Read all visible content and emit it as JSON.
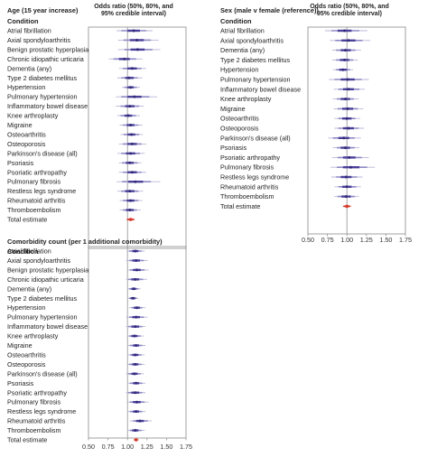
{
  "colors": {
    "panel_border": "#8a8a8a",
    "reference_line": "#9a9a9a",
    "interval_95": "#b9b6d8",
    "interval_80": "#8e89c4",
    "interval_50": "#4a3f98",
    "point": "#2f2a7a",
    "total_estimate": "#d9382b"
  },
  "chart_data": [
    {
      "type": "forest",
      "title": "Age (15 year increase)",
      "condition_header": "Condition",
      "effect_header": "Odds ratio (50%, 80%, and 95% credible interval)",
      "xlim": [
        0.5,
        1.75
      ],
      "reference": 1.0,
      "tick_values": [
        0.5,
        0.75,
        1.0,
        1.25,
        1.5,
        1.75
      ],
      "tick_labels": [],
      "rows": [
        {
          "label": "Atrial fibrillation",
          "est": 1.08,
          "ci50": [
            1.0,
            1.16
          ],
          "ci80": [
            0.92,
            1.24
          ],
          "ci95": [
            0.86,
            1.32
          ]
        },
        {
          "label": "Axial spondyloarthritis",
          "est": 1.12,
          "ci50": [
            1.03,
            1.21
          ],
          "ci80": [
            0.95,
            1.3
          ],
          "ci95": [
            0.88,
            1.4
          ]
        },
        {
          "label": "Benign prostatic hyperplasia",
          "est": 1.13,
          "ci50": [
            1.04,
            1.22
          ],
          "ci80": [
            0.96,
            1.32
          ],
          "ci95": [
            0.88,
            1.42
          ]
        },
        {
          "label": "Chronic idiopathic urticaria",
          "est": 0.96,
          "ci50": [
            0.89,
            1.03
          ],
          "ci80": [
            0.82,
            1.11
          ],
          "ci95": [
            0.76,
            1.19
          ]
        },
        {
          "label": "Dementia (any)",
          "est": 1.06,
          "ci50": [
            1.0,
            1.12
          ],
          "ci80": [
            0.94,
            1.18
          ],
          "ci95": [
            0.89,
            1.24
          ]
        },
        {
          "label": "Type 2 diabetes mellitus",
          "est": 1.02,
          "ci50": [
            0.97,
            1.08
          ],
          "ci80": [
            0.92,
            1.13
          ],
          "ci95": [
            0.87,
            1.19
          ]
        },
        {
          "label": "Hypertension",
          "est": 1.04,
          "ci50": [
            1.0,
            1.08
          ],
          "ci80": [
            0.96,
            1.12
          ],
          "ci95": [
            0.93,
            1.16
          ]
        },
        {
          "label": "Pulmonary hypertension",
          "est": 1.09,
          "ci50": [
            1.0,
            1.18
          ],
          "ci80": [
            0.92,
            1.28
          ],
          "ci95": [
            0.85,
            1.38
          ]
        },
        {
          "label": "Inflammatory bowel disease",
          "est": 1.03,
          "ci50": [
            0.97,
            1.09
          ],
          "ci80": [
            0.91,
            1.15
          ],
          "ci95": [
            0.85,
            1.21
          ]
        },
        {
          "label": "Knee arthroplasty",
          "est": 1.01,
          "ci50": [
            0.96,
            1.06
          ],
          "ci80": [
            0.91,
            1.11
          ],
          "ci95": [
            0.87,
            1.16
          ]
        },
        {
          "label": "Migraine",
          "est": 1.04,
          "ci50": [
            0.99,
            1.09
          ],
          "ci80": [
            0.94,
            1.14
          ],
          "ci95": [
            0.9,
            1.19
          ]
        },
        {
          "label": "Osteoarthritis",
          "est": 1.05,
          "ci50": [
            1.0,
            1.1
          ],
          "ci80": [
            0.95,
            1.15
          ],
          "ci95": [
            0.91,
            1.2
          ]
        },
        {
          "label": "Osteoporosis",
          "est": 1.06,
          "ci50": [
            1.0,
            1.12
          ],
          "ci80": [
            0.94,
            1.18
          ],
          "ci95": [
            0.89,
            1.24
          ]
        },
        {
          "label": "Parkinson's disease (all)",
          "est": 1.04,
          "ci50": [
            0.98,
            1.1
          ],
          "ci80": [
            0.92,
            1.16
          ],
          "ci95": [
            0.87,
            1.22
          ]
        },
        {
          "label": "Psoriasis",
          "est": 1.03,
          "ci50": [
            0.98,
            1.08
          ],
          "ci80": [
            0.93,
            1.13
          ],
          "ci95": [
            0.89,
            1.18
          ]
        },
        {
          "label": "Psoriatic arthropathy",
          "est": 1.06,
          "ci50": [
            1.0,
            1.12
          ],
          "ci80": [
            0.94,
            1.18
          ],
          "ci95": [
            0.89,
            1.24
          ]
        },
        {
          "label": "Pulmonary fibrosis",
          "est": 1.1,
          "ci50": [
            1.01,
            1.2
          ],
          "ci80": [
            0.93,
            1.3
          ],
          "ci95": [
            0.86,
            1.42
          ]
        },
        {
          "label": "Restless legs syndrome",
          "est": 1.03,
          "ci50": [
            0.97,
            1.09
          ],
          "ci80": [
            0.92,
            1.14
          ],
          "ci95": [
            0.87,
            1.2
          ]
        },
        {
          "label": "Rheumatoid arthritis",
          "est": 1.04,
          "ci50": [
            0.99,
            1.09
          ],
          "ci80": [
            0.94,
            1.14
          ],
          "ci95": [
            0.9,
            1.19
          ]
        },
        {
          "label": "Thromboembolism",
          "est": 1.03,
          "ci50": [
            0.98,
            1.08
          ],
          "ci80": [
            0.94,
            1.12
          ],
          "ci95": [
            0.9,
            1.17
          ]
        },
        {
          "label": "Total estimate",
          "est": 1.04,
          "ci50": [
            1.02,
            1.06
          ],
          "ci80": [
            1.0,
            1.08
          ],
          "ci95": [
            0.99,
            1.09
          ],
          "total": true
        }
      ]
    },
    {
      "type": "forest",
      "title": "Sex (male v female (reference))",
      "condition_header": "Condition",
      "effect_header": "Odds ratio (50%, 80%, and 95% credible interval)",
      "xlim": [
        0.5,
        1.75
      ],
      "reference": 1.0,
      "tick_values": [
        0.5,
        0.75,
        1.0,
        1.25,
        1.5,
        1.75
      ],
      "tick_labels": [
        "0.50",
        "0.75",
        "1.00",
        "1.25",
        "1.50",
        "1.75"
      ],
      "rows": [
        {
          "label": "Atrial fibrillation",
          "est": 0.97,
          "ci50": [
            0.88,
            1.06
          ],
          "ci80": [
            0.8,
            1.16
          ],
          "ci95": [
            0.72,
            1.26
          ]
        },
        {
          "label": "Axial spondyloarthritis",
          "est": 1.02,
          "ci50": [
            0.93,
            1.11
          ],
          "ci80": [
            0.85,
            1.2
          ],
          "ci95": [
            0.78,
            1.3
          ]
        },
        {
          "label": "Dementia (any)",
          "est": 0.98,
          "ci50": [
            0.92,
            1.05
          ],
          "ci80": [
            0.86,
            1.11
          ],
          "ci95": [
            0.81,
            1.18
          ]
        },
        {
          "label": "Type 2 diabetes mellitus",
          "est": 0.97,
          "ci50": [
            0.91,
            1.03
          ],
          "ci80": [
            0.86,
            1.08
          ],
          "ci95": [
            0.81,
            1.14
          ]
        },
        {
          "label": "Hypertension",
          "est": 0.95,
          "ci50": [
            0.9,
            1.0
          ],
          "ci80": [
            0.86,
            1.04
          ],
          "ci95": [
            0.82,
            1.08
          ]
        },
        {
          "label": "Pulmonary hypertension",
          "est": 1.01,
          "ci50": [
            0.92,
            1.1
          ],
          "ci80": [
            0.84,
            1.19
          ],
          "ci95": [
            0.77,
            1.28
          ]
        },
        {
          "label": "Inflammatory bowel disease",
          "est": 1.02,
          "ci50": [
            0.95,
            1.09
          ],
          "ci80": [
            0.89,
            1.16
          ],
          "ci95": [
            0.83,
            1.23
          ]
        },
        {
          "label": "Knee arthroplasty",
          "est": 0.98,
          "ci50": [
            0.92,
            1.04
          ],
          "ci80": [
            0.87,
            1.09
          ],
          "ci95": [
            0.82,
            1.15
          ]
        },
        {
          "label": "Migraine",
          "est": 1.01,
          "ci50": [
            0.94,
            1.08
          ],
          "ci80": [
            0.88,
            1.14
          ],
          "ci95": [
            0.83,
            1.21
          ]
        },
        {
          "label": "Osteoarthritis",
          "est": 1.0,
          "ci50": [
            0.94,
            1.06
          ],
          "ci80": [
            0.89,
            1.11
          ],
          "ci95": [
            0.84,
            1.17
          ]
        },
        {
          "label": "Osteoporosis",
          "est": 1.02,
          "ci50": [
            0.95,
            1.09
          ],
          "ci80": [
            0.89,
            1.15
          ],
          "ci95": [
            0.84,
            1.22
          ]
        },
        {
          "label": "Parkinson's disease (all)",
          "est": 0.96,
          "ci50": [
            0.89,
            1.03
          ],
          "ci80": [
            0.82,
            1.1
          ],
          "ci95": [
            0.76,
            1.18
          ]
        },
        {
          "label": "Psoriasis",
          "est": 0.98,
          "ci50": [
            0.92,
            1.04
          ],
          "ci80": [
            0.87,
            1.1
          ],
          "ci95": [
            0.82,
            1.16
          ]
        },
        {
          "label": "Psoriatic arthropathy",
          "est": 1.03,
          "ci50": [
            0.95,
            1.11
          ],
          "ci80": [
            0.88,
            1.19
          ],
          "ci95": [
            0.81,
            1.28
          ]
        },
        {
          "label": "Pulmonary fibrosis",
          "est": 1.05,
          "ci50": [
            0.95,
            1.16
          ],
          "ci80": [
            0.87,
            1.26
          ],
          "ci95": [
            0.79,
            1.36
          ]
        },
        {
          "label": "Restless legs syndrome",
          "est": 0.99,
          "ci50": [
            0.92,
            1.06
          ],
          "ci80": [
            0.86,
            1.13
          ],
          "ci95": [
            0.8,
            1.2
          ]
        },
        {
          "label": "Rheumatoid arthritis",
          "est": 1.0,
          "ci50": [
            0.94,
            1.06
          ],
          "ci80": [
            0.89,
            1.12
          ],
          "ci95": [
            0.84,
            1.18
          ]
        },
        {
          "label": "Thromboembolism",
          "est": 0.99,
          "ci50": [
            0.93,
            1.05
          ],
          "ci80": [
            0.88,
            1.1
          ],
          "ci95": [
            0.84,
            1.15
          ]
        },
        {
          "label": "Total estimate",
          "est": 1.0,
          "ci50": [
            0.98,
            1.02
          ],
          "ci80": [
            0.96,
            1.04
          ],
          "ci95": [
            0.95,
            1.05
          ],
          "total": true
        }
      ]
    },
    {
      "type": "forest",
      "title": "Comorbidity count (per 1 additional comorbidity)",
      "condition_header": "Condition",
      "effect_header": "",
      "xlim": [
        0.5,
        1.75
      ],
      "reference": 1.0,
      "tick_values": [
        0.5,
        0.75,
        1.0,
        1.25,
        1.5,
        1.75
      ],
      "tick_labels": [
        "0.50",
        "0.75",
        "1.00",
        "1.25",
        "1.50",
        "1.75"
      ],
      "rows": [
        {
          "label": "Atrial fibrillation",
          "est": 1.1,
          "ci50": [
            1.06,
            1.14
          ],
          "ci80": [
            1.02,
            1.18
          ],
          "ci95": [
            0.99,
            1.22
          ]
        },
        {
          "label": "Axial spondyloarthritis",
          "est": 1.11,
          "ci50": [
            1.06,
            1.16
          ],
          "ci80": [
            1.02,
            1.21
          ],
          "ci95": [
            0.98,
            1.26
          ]
        },
        {
          "label": "Benign prostatic hyperplasia",
          "est": 1.12,
          "ci50": [
            1.07,
            1.17
          ],
          "ci80": [
            1.03,
            1.22
          ],
          "ci95": [
            0.99,
            1.27
          ]
        },
        {
          "label": "Chronic idiopathic urticaria",
          "est": 1.1,
          "ci50": [
            1.05,
            1.15
          ],
          "ci80": [
            1.01,
            1.2
          ],
          "ci95": [
            0.98,
            1.25
          ]
        },
        {
          "label": "Dementia (any)",
          "est": 1.08,
          "ci50": [
            1.05,
            1.11
          ],
          "ci80": [
            1.02,
            1.14
          ],
          "ci95": [
            1.0,
            1.17
          ]
        },
        {
          "label": "Type 2 diabetes mellitus",
          "est": 1.07,
          "ci50": [
            1.04,
            1.1
          ],
          "ci80": [
            1.02,
            1.12
          ],
          "ci95": [
            1.0,
            1.14
          ]
        },
        {
          "label": "Hypertension",
          "est": 1.12,
          "ci50": [
            1.08,
            1.16
          ],
          "ci80": [
            1.05,
            1.19
          ],
          "ci95": [
            1.02,
            1.23
          ]
        },
        {
          "label": "Pulmonary hypertension",
          "est": 1.11,
          "ci50": [
            1.06,
            1.16
          ],
          "ci80": [
            1.02,
            1.21
          ],
          "ci95": [
            0.98,
            1.26
          ]
        },
        {
          "label": "Inflammatory bowel disease",
          "est": 1.1,
          "ci50": [
            1.05,
            1.15
          ],
          "ci80": [
            1.01,
            1.19
          ],
          "ci95": [
            0.98,
            1.23
          ]
        },
        {
          "label": "Knee arthroplasty",
          "est": 1.09,
          "ci50": [
            1.05,
            1.13
          ],
          "ci80": [
            1.02,
            1.17
          ],
          "ci95": [
            0.99,
            1.21
          ]
        },
        {
          "label": "Migraine",
          "est": 1.11,
          "ci50": [
            1.07,
            1.15
          ],
          "ci80": [
            1.03,
            1.19
          ],
          "ci95": [
            1.0,
            1.23
          ]
        },
        {
          "label": "Osteoarthritis",
          "est": 1.1,
          "ci50": [
            1.06,
            1.14
          ],
          "ci80": [
            1.03,
            1.18
          ],
          "ci95": [
            1.0,
            1.22
          ]
        },
        {
          "label": "Osteoporosis",
          "est": 1.1,
          "ci50": [
            1.06,
            1.14
          ],
          "ci80": [
            1.02,
            1.18
          ],
          "ci95": [
            0.99,
            1.22
          ]
        },
        {
          "label": "Parkinson's disease (all)",
          "est": 1.09,
          "ci50": [
            1.05,
            1.13
          ],
          "ci80": [
            1.01,
            1.17
          ],
          "ci95": [
            0.98,
            1.21
          ]
        },
        {
          "label": "Psoriasis",
          "est": 1.11,
          "ci50": [
            1.07,
            1.15
          ],
          "ci80": [
            1.03,
            1.19
          ],
          "ci95": [
            1.0,
            1.23
          ]
        },
        {
          "label": "Psoriatic arthropathy",
          "est": 1.1,
          "ci50": [
            1.05,
            1.15
          ],
          "ci80": [
            1.01,
            1.19
          ],
          "ci95": [
            0.98,
            1.23
          ]
        },
        {
          "label": "Pulmonary fibrosis",
          "est": 1.12,
          "ci50": [
            1.07,
            1.17
          ],
          "ci80": [
            1.03,
            1.22
          ],
          "ci95": [
            0.99,
            1.27
          ]
        },
        {
          "label": "Restless legs syndrome",
          "est": 1.11,
          "ci50": [
            1.07,
            1.15
          ],
          "ci80": [
            1.03,
            1.19
          ],
          "ci95": [
            1.0,
            1.23
          ]
        },
        {
          "label": "Rheumatoid arthritis",
          "est": 1.16,
          "ci50": [
            1.11,
            1.21
          ],
          "ci80": [
            1.07,
            1.26
          ],
          "ci95": [
            1.03,
            1.31
          ]
        },
        {
          "label": "Thromboembolism",
          "est": 1.1,
          "ci50": [
            1.06,
            1.14
          ],
          "ci80": [
            1.03,
            1.18
          ],
          "ci95": [
            1.0,
            1.22
          ]
        },
        {
          "label": "Total estimate",
          "est": 1.11,
          "ci50": [
            1.1,
            1.12
          ],
          "ci80": [
            1.09,
            1.13
          ],
          "ci95": [
            1.08,
            1.14
          ],
          "total": true
        }
      ]
    }
  ]
}
